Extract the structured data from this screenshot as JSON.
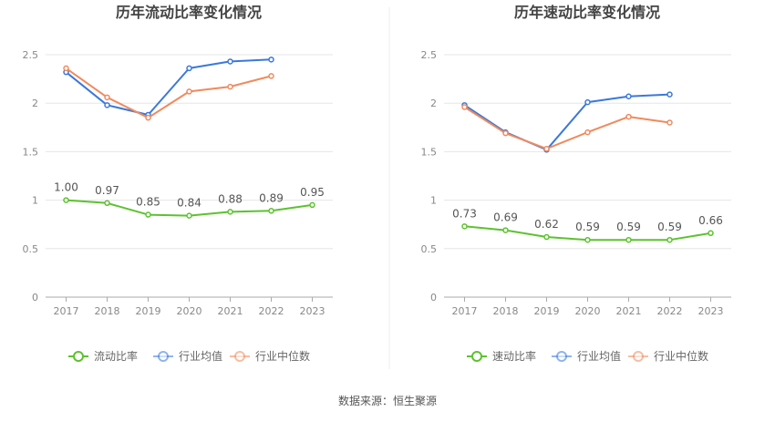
{
  "source_note": "数据来源：恒生聚源",
  "colors": {
    "company": "#5cc22f",
    "industry_avg": "#3a78dc",
    "industry_median": "#f08a5d",
    "grid": "#e6e6e6",
    "axis": "#aaaaaa",
    "tick_text": "#888888",
    "label_text": "#555555",
    "title_text": "#444444"
  },
  "chart_data": [
    {
      "type": "line",
      "title": "历年流动比率变化情况",
      "categories": [
        "2017",
        "2018",
        "2019",
        "2020",
        "2021",
        "2022",
        "2023"
      ],
      "ylim": [
        0,
        2.5
      ],
      "yticks": [
        "0",
        "0.5",
        "1",
        "1.5",
        "2",
        "2.5"
      ],
      "grid": true,
      "legend_position": "bottom-center",
      "series": [
        {
          "name": "流动比率",
          "key": "company",
          "values": [
            1.0,
            0.97,
            0.85,
            0.84,
            0.88,
            0.89,
            0.95
          ],
          "labels": [
            "1.00",
            "0.97",
            "0.85",
            "0.84",
            "0.88",
            "0.89",
            "0.95"
          ]
        },
        {
          "name": "行业均值",
          "key": "industry_avg",
          "values": [
            2.32,
            1.98,
            1.88,
            2.36,
            2.43,
            2.45,
            null
          ]
        },
        {
          "name": "行业中位数",
          "key": "industry_median",
          "values": [
            2.36,
            2.06,
            1.85,
            2.12,
            2.17,
            2.28,
            null
          ]
        }
      ]
    },
    {
      "type": "line",
      "title": "历年速动比率变化情况",
      "categories": [
        "2017",
        "2018",
        "2019",
        "2020",
        "2021",
        "2022",
        "2023"
      ],
      "ylim": [
        0,
        2.5
      ],
      "yticks": [
        "0",
        "0.5",
        "1",
        "1.5",
        "2",
        "2.5"
      ],
      "grid": true,
      "legend_position": "bottom-center",
      "series": [
        {
          "name": "速动比率",
          "key": "company",
          "values": [
            0.73,
            0.69,
            0.62,
            0.59,
            0.59,
            0.59,
            0.66
          ],
          "labels": [
            "0.73",
            "0.69",
            "0.62",
            "0.59",
            "0.59",
            "0.59",
            "0.66"
          ]
        },
        {
          "name": "行业均值",
          "key": "industry_avg",
          "values": [
            1.98,
            1.7,
            1.52,
            2.01,
            2.07,
            2.09,
            null
          ]
        },
        {
          "name": "行业中位数",
          "key": "industry_median",
          "values": [
            1.96,
            1.69,
            1.53,
            1.7,
            1.86,
            1.8,
            null
          ]
        }
      ]
    }
  ]
}
